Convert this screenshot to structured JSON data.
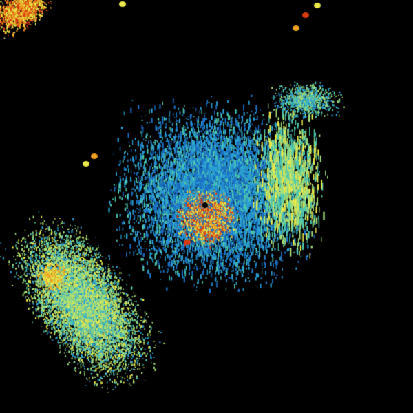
{
  "colors": {
    "background": "#000000",
    "low": "#1a6fc4",
    "low_mid": "#2a9fd6",
    "mid": "#4fc9b0",
    "mid_high": "#a8e07a",
    "high": "#e8e84a",
    "very_high": "#f0a020",
    "extreme": "#d83a10"
  }
}
